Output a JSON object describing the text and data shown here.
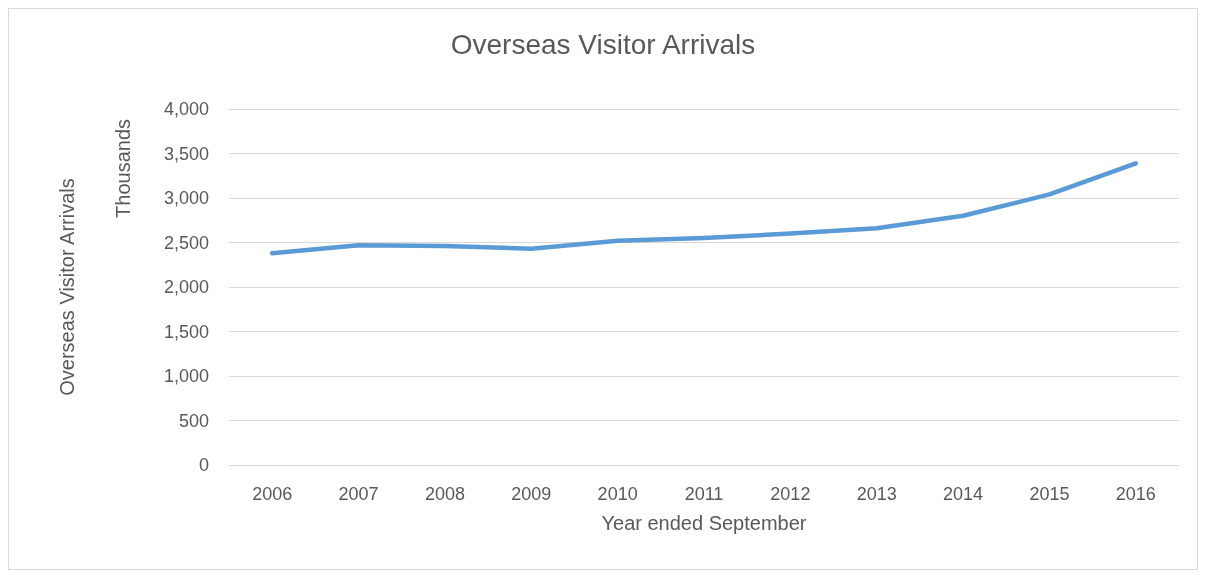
{
  "chart_data": {
    "type": "line",
    "title": "Overseas Visitor Arrivals",
    "xlabel": "Year ended September",
    "ylabel": "Overseas Visitor Arrivals",
    "annotations": [
      "Thousands"
    ],
    "categories": [
      "2006",
      "2007",
      "2008",
      "2009",
      "2010",
      "2011",
      "2012",
      "2013",
      "2014",
      "2015",
      "2016"
    ],
    "series": [
      {
        "color": "#5b9bd5",
        "values": [
          2380,
          2470,
          2460,
          2430,
          2520,
          2550,
          2600,
          2660,
          2800,
          3040,
          3390
        ]
      }
    ],
    "ylim": [
      0,
      4000
    ],
    "yticks": [
      0,
      500,
      {
        "value": 1000,
        "label": "1,000"
      },
      {
        "value": 1500,
        "label": "1,500"
      },
      {
        "value": 2000,
        "label": "2,000"
      },
      {
        "value": 2500,
        "label": "2,500"
      },
      {
        "value": 3000,
        "label": "3,000"
      },
      {
        "value": 3500,
        "label": "3,500"
      },
      {
        "value": 4000,
        "label": "4,000"
      }
    ],
    "grid": "y",
    "marker": "none",
    "line_style": "solid"
  }
}
